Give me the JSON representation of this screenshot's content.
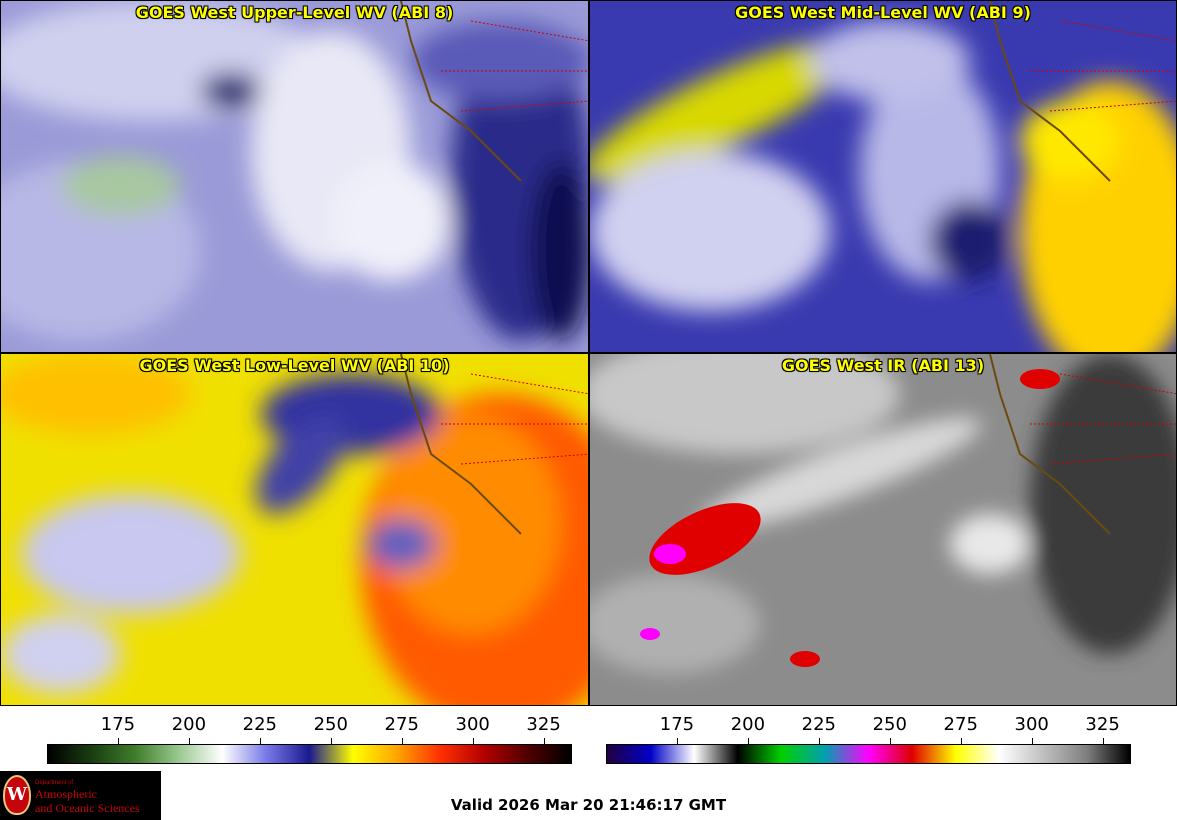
{
  "panels": [
    {
      "title": "GOES West Upper-Level WV (ABI 8)",
      "scheme": "wv_upper"
    },
    {
      "title": "GOES West Mid-Level WV (ABI 9)",
      "scheme": "wv_mid"
    },
    {
      "title": "GOES West Low-Level WV (ABI 10)",
      "scheme": "wv_low"
    },
    {
      "title": "GOES West IR (ABI 13)",
      "scheme": "ir"
    }
  ],
  "colorbars": {
    "wv": {
      "ticks": [
        "175",
        "200",
        "225",
        "250",
        "275",
        "300",
        "325"
      ],
      "colors": [
        "#000000",
        "#1a3d12",
        "#3e7d2a",
        "#9ac890",
        "#ffffff",
        "#7a7ae8",
        "#1a1a90",
        "#ffff00",
        "#ffa500",
        "#ff3000",
        "#b40000",
        "#500000",
        "#000000"
      ]
    },
    "ir": {
      "ticks": [
        "175",
        "200",
        "225",
        "250",
        "275",
        "300",
        "325"
      ],
      "colors": [
        "#200040",
        "#0000c8",
        "#ffffff",
        "#000000",
        "#00d000",
        "#00a0b0",
        "#ff00ff",
        "#e00000",
        "#ffff00",
        "#ffffff",
        "#c0c0c0",
        "#808080",
        "#000000"
      ]
    }
  },
  "valid_text": "Valid 2026 Mar 20 21:46:17 GMT",
  "logo": {
    "line1": "Department of",
    "line2": "Atmospheric",
    "line3": "and Oceanic Sciences",
    "seal_letter": "W"
  }
}
